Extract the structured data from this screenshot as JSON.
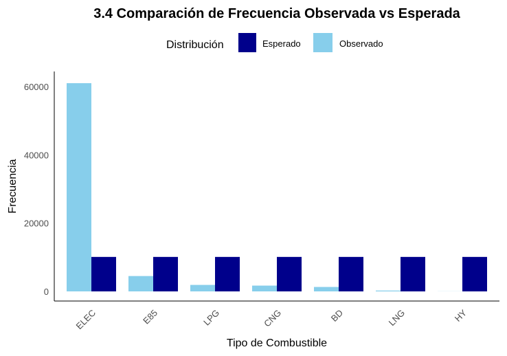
{
  "chart_data": {
    "type": "bar",
    "title": "3.4 Comparación de Frecuencia Observada vs Esperada",
    "xlabel": "Tipo de Combustible",
    "ylabel": "Frecuencia",
    "ylim": [
      0,
      64000
    ],
    "yticks": [
      0,
      20000,
      40000,
      60000
    ],
    "grid": false,
    "legend": {
      "title": "Distribución",
      "placement": "top",
      "entries": [
        "Esperado",
        "Observado"
      ]
    },
    "categories": [
      "ELEC",
      "E85",
      "LPG",
      "CNG",
      "BD",
      "LNG",
      "HY"
    ],
    "series": [
      {
        "name": "Observado",
        "color": "#87CEEB",
        "values": [
          61000,
          4500,
          1900,
          1700,
          1300,
          250,
          30
        ]
      },
      {
        "name": "Esperado",
        "color": "#00008B",
        "values": [
          10100,
          10100,
          10100,
          10100,
          10100,
          10100,
          10100
        ]
      }
    ]
  }
}
